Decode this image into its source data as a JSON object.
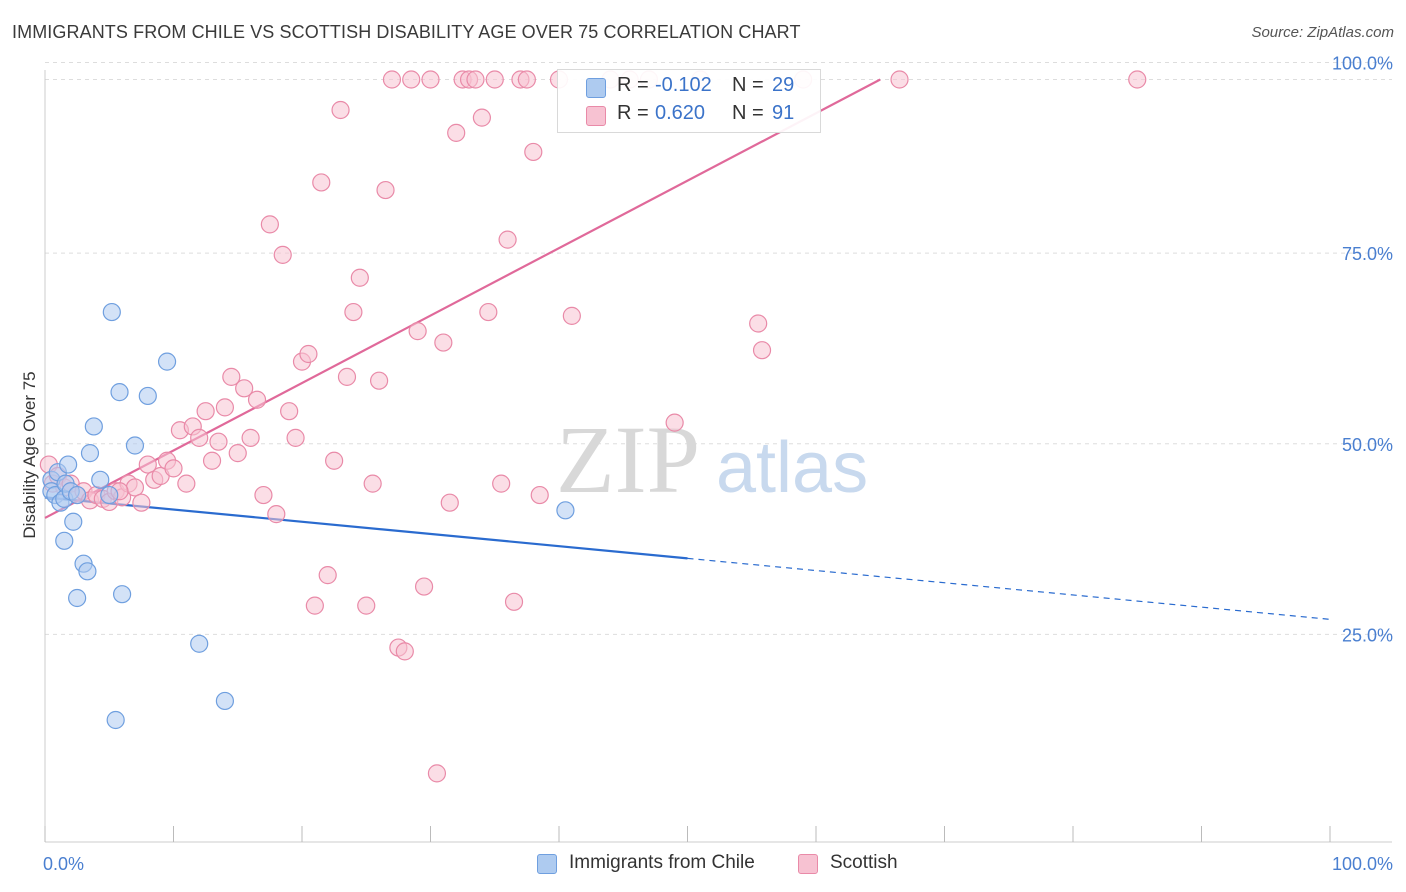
{
  "title": "IMMIGRANTS FROM CHILE VS SCOTTISH DISABILITY AGE OVER 75 CORRELATION CHART",
  "source": "Source: ZipAtlas.com",
  "watermark": {
    "zip": "ZIP",
    "atlas": "atlas"
  },
  "legend": {
    "r_label": "R =",
    "n_label": "N =",
    "rows": [
      {
        "r": "-0.102",
        "n": "29",
        "color": "#aecbf0",
        "stroke": "#6f9fdf"
      },
      {
        "r": "0.620",
        "n": "91",
        "color": "#f7c2d2",
        "stroke": "#e98aa8"
      }
    ]
  },
  "bottom_legend": [
    {
      "label": "Immigrants from Chile",
      "color": "#aecbf0",
      "stroke": "#6f9fdf"
    },
    {
      "label": "Scottish",
      "color": "#f7c2d2",
      "stroke": "#e98aa8"
    }
  ],
  "chart_data": {
    "type": "scatter",
    "xlabel": "",
    "ylabel": "Disability Age Over 75",
    "xlim": [
      0,
      100
    ],
    "ylim": [
      0,
      102
    ],
    "x_tick_labels": [
      "0.0%",
      "100.0%"
    ],
    "y_ticks": [
      25,
      50,
      75,
      100
    ],
    "y_tick_labels": [
      "25.0%",
      "50.0%",
      "75.0%",
      "100.0%"
    ],
    "grid": true,
    "series": [
      {
        "name": "Immigrants from Chile",
        "color": "#6f9fdf",
        "fill": "#aecbf0",
        "trend": {
          "x0": 0,
          "y0": 45.2,
          "x1": 50,
          "y1": 37.2,
          "dash_to_x": 100,
          "dash_to_y": 29.2,
          "color": "#2a6bcf"
        },
        "points": [
          [
            0.5,
            47.5
          ],
          [
            0.5,
            46.0
          ],
          [
            0.8,
            45.5
          ],
          [
            1.0,
            48.5
          ],
          [
            1.2,
            44.5
          ],
          [
            1.5,
            45.0
          ],
          [
            1.6,
            47.0
          ],
          [
            1.8,
            49.5
          ],
          [
            2.0,
            46.0
          ],
          [
            2.2,
            42.0
          ],
          [
            2.5,
            45.5
          ],
          [
            3.0,
            36.5
          ],
          [
            3.3,
            35.5
          ],
          [
            2.5,
            32.0
          ],
          [
            1.5,
            39.5
          ],
          [
            3.5,
            51.0
          ],
          [
            3.8,
            54.5
          ],
          [
            4.3,
            47.5
          ],
          [
            5.0,
            45.5
          ],
          [
            5.2,
            69.5
          ],
          [
            5.8,
            59.0
          ],
          [
            6.0,
            32.5
          ],
          [
            7.0,
            52.0
          ],
          [
            8.0,
            58.5
          ],
          [
            9.5,
            63.0
          ],
          [
            12.0,
            26.0
          ],
          [
            14.0,
            18.5
          ],
          [
            5.5,
            16.0
          ],
          [
            40.5,
            43.5
          ]
        ]
      },
      {
        "name": "Scottish",
        "color": "#e98aa8",
        "fill": "#f7c2d2",
        "trend": {
          "x0": 0,
          "y0": 42.5,
          "x1": 65,
          "y1": 100,
          "color": "#e0699a"
        },
        "points": [
          [
            0.3,
            49.5
          ],
          [
            0.6,
            47.0
          ],
          [
            1.0,
            48.0
          ],
          [
            1.5,
            46.5
          ],
          [
            2.0,
            47.0
          ],
          [
            2.5,
            45.5
          ],
          [
            3.0,
            46.0
          ],
          [
            3.5,
            44.8
          ],
          [
            4.0,
            45.5
          ],
          [
            4.5,
            45.0
          ],
          [
            5.0,
            44.6
          ],
          [
            5.5,
            46.0
          ],
          [
            6.0,
            45.2
          ],
          [
            6.5,
            47.0
          ],
          [
            7.0,
            46.5
          ],
          [
            7.5,
            44.5
          ],
          [
            8.0,
            49.5
          ],
          [
            8.5,
            47.5
          ],
          [
            9.0,
            48.0
          ],
          [
            9.5,
            50.0
          ],
          [
            10.0,
            49.0
          ],
          [
            10.5,
            54.0
          ],
          [
            11.0,
            47.0
          ],
          [
            11.5,
            54.5
          ],
          [
            12.0,
            53.0
          ],
          [
            12.5,
            56.5
          ],
          [
            13.0,
            50.0
          ],
          [
            13.5,
            52.5
          ],
          [
            14.0,
            57.0
          ],
          [
            14.5,
            61.0
          ],
          [
            15.0,
            51.0
          ],
          [
            15.5,
            59.5
          ],
          [
            16.0,
            53.0
          ],
          [
            16.5,
            58.0
          ],
          [
            17.0,
            45.5
          ],
          [
            17.5,
            81.0
          ],
          [
            18.0,
            43.0
          ],
          [
            18.5,
            77.0
          ],
          [
            19.0,
            56.5
          ],
          [
            19.5,
            53.0
          ],
          [
            20.0,
            63.0
          ],
          [
            20.5,
            64.0
          ],
          [
            21.0,
            31.0
          ],
          [
            21.5,
            86.5
          ],
          [
            22.0,
            35.0
          ],
          [
            22.5,
            50.0
          ],
          [
            23.0,
            96.0
          ],
          [
            23.5,
            61.0
          ],
          [
            24.0,
            69.5
          ],
          [
            24.5,
            74.0
          ],
          [
            25.0,
            31.0
          ],
          [
            25.5,
            47.0
          ],
          [
            26.0,
            60.5
          ],
          [
            26.5,
            85.5
          ],
          [
            27.0,
            100.0
          ],
          [
            27.5,
            25.5
          ],
          [
            28.0,
            25.0
          ],
          [
            28.5,
            100.0
          ],
          [
            29.0,
            67.0
          ],
          [
            29.5,
            33.5
          ],
          [
            30.0,
            100.0
          ],
          [
            30.5,
            9.0
          ],
          [
            31.0,
            65.5
          ],
          [
            31.5,
            44.5
          ],
          [
            32.0,
            93.0
          ],
          [
            32.5,
            100.0
          ],
          [
            33.0,
            100.0
          ],
          [
            33.5,
            100.0
          ],
          [
            34.0,
            95.0
          ],
          [
            34.5,
            69.5
          ],
          [
            35.0,
            100.0
          ],
          [
            35.5,
            47.0
          ],
          [
            36.0,
            79.0
          ],
          [
            36.5,
            31.5
          ],
          [
            37.0,
            100.0
          ],
          [
            37.5,
            100.0
          ],
          [
            38.0,
            90.5
          ],
          [
            38.5,
            45.5
          ],
          [
            40.0,
            100.0
          ],
          [
            41.0,
            69.0
          ],
          [
            44.0,
            100.0
          ],
          [
            45.5,
            100.0
          ],
          [
            47.0,
            100.0
          ],
          [
            49.0,
            55.0
          ],
          [
            51.0,
            100.0
          ],
          [
            55.5,
            68.0
          ],
          [
            55.8,
            64.5
          ],
          [
            59.0,
            100.0
          ],
          [
            66.5,
            100.0
          ],
          [
            85.0,
            100.0
          ],
          [
            5.8,
            46.0
          ]
        ]
      }
    ]
  }
}
